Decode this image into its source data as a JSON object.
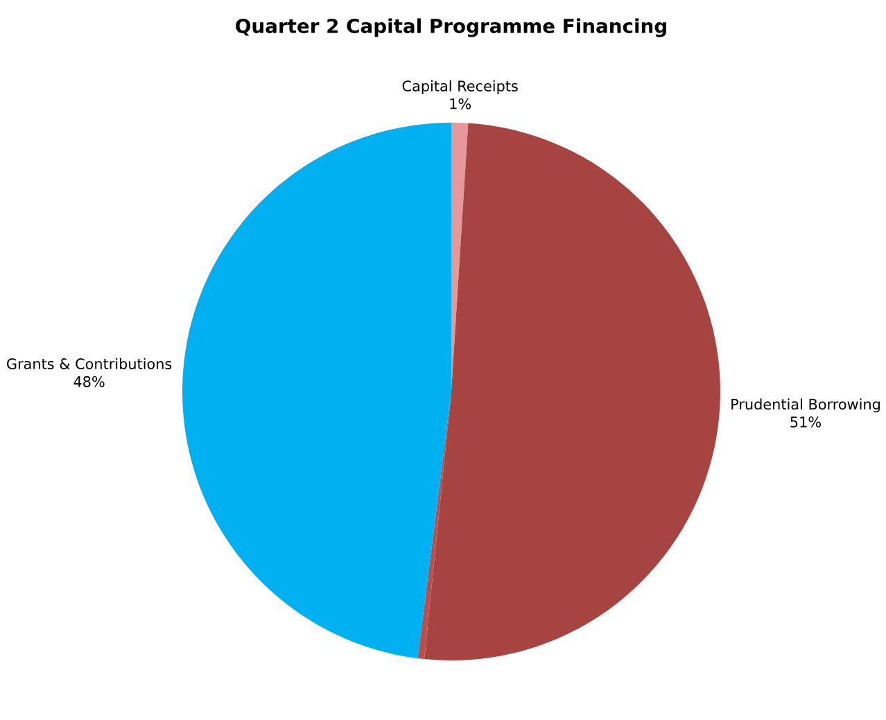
{
  "chart_data": {
    "type": "pie",
    "title": "Quarter 2 Capital Programme Financing",
    "categories": [
      "Capital Receipts",
      "Prudential Borrowing",
      null,
      "Grants & Contributions"
    ],
    "values": [
      1,
      50.6,
      0.4,
      48
    ],
    "value_labels": [
      "1%",
      "51%",
      null,
      "48%"
    ],
    "colors": [
      "#e6999a",
      "#a54441",
      "#b9504d",
      "#00b0f0"
    ],
    "legend": false
  }
}
